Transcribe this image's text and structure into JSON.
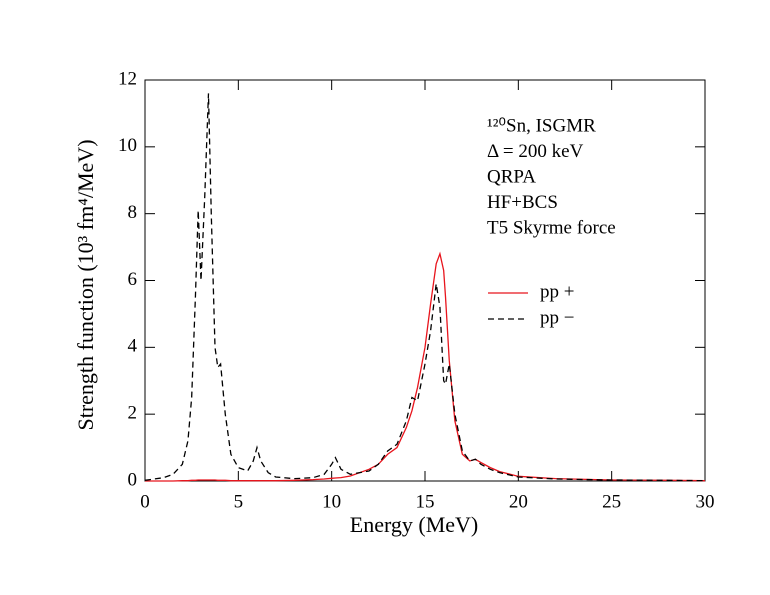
{
  "chart_data": {
    "type": "line",
    "x_label": "Energy  (MeV)",
    "y_label": "Strength function (10³ fm⁴/MeV)",
    "annotations": [
      "¹²⁰Sn,  ISGMR",
      "Δ = 200 keV",
      "QRPA",
      "HF+BCS",
      "T5 Skyrme force"
    ],
    "xlim": [
      0,
      30
    ],
    "xticks": [
      0,
      5,
      10,
      15,
      20,
      25,
      30
    ],
    "ylim": [
      0,
      12
    ],
    "yticks": [
      0,
      2,
      4,
      6,
      8,
      10,
      12
    ],
    "x": [
      0,
      1,
      1.5,
      2,
      2.3,
      2.5,
      2.7,
      2.85,
      3.0,
      3.2,
      3.4,
      3.55,
      3.75,
      3.9,
      4.05,
      4.3,
      4.6,
      5.0,
      5.5,
      5.8,
      6.0,
      6.2,
      6.6,
      7,
      8,
      9,
      9.6,
      10,
      10.2,
      10.5,
      11,
      12,
      12.5,
      13,
      13.5,
      14,
      14.3,
      14.6,
      15,
      15.3,
      15.6,
      15.8,
      16.0,
      16.1,
      16.3,
      16.6,
      17,
      17.4,
      17.7,
      18,
      18.5,
      19,
      20,
      22,
      25,
      28,
      30
    ],
    "series": [
      {
        "name": "pp +",
        "color": "#e8141c",
        "linestyle": "solid",
        "values": [
          0,
          0,
          0,
          0.01,
          0.01,
          0.02,
          0.02,
          0.03,
          0.03,
          0.03,
          0.03,
          0.03,
          0.03,
          0.02,
          0.02,
          0.02,
          0.01,
          0.01,
          0.01,
          0.01,
          0.01,
          0.01,
          0.01,
          0.01,
          0.02,
          0.04,
          0.06,
          0.08,
          0.09,
          0.1,
          0.15,
          0.35,
          0.5,
          0.8,
          1.0,
          1.6,
          2.1,
          2.8,
          4.0,
          5.3,
          6.5,
          6.8,
          6.3,
          5.5,
          3.6,
          1.8,
          0.8,
          0.6,
          0.65,
          0.55,
          0.4,
          0.28,
          0.14,
          0.07,
          0.03,
          0.02,
          0.01
        ]
      },
      {
        "name": "pp −",
        "color": "#000000",
        "linestyle": "dashed",
        "values": [
          0.02,
          0.1,
          0.2,
          0.5,
          1.2,
          2.5,
          5.5,
          8.1,
          6.0,
          8.5,
          11.6,
          8,
          4.0,
          3.4,
          3.5,
          2,
          0.8,
          0.4,
          0.3,
          0.6,
          1.0,
          0.6,
          0.25,
          0.12,
          0.07,
          0.1,
          0.2,
          0.5,
          0.7,
          0.35,
          0.2,
          0.3,
          0.5,
          0.9,
          1.1,
          1.8,
          2.5,
          2.4,
          3.5,
          4.5,
          5.9,
          5.2,
          3.0,
          2.9,
          3.5,
          2.0,
          0.9,
          0.6,
          0.65,
          0.5,
          0.35,
          0.25,
          0.12,
          0.06,
          0.03,
          0.02,
          0.01
        ]
      }
    ]
  }
}
